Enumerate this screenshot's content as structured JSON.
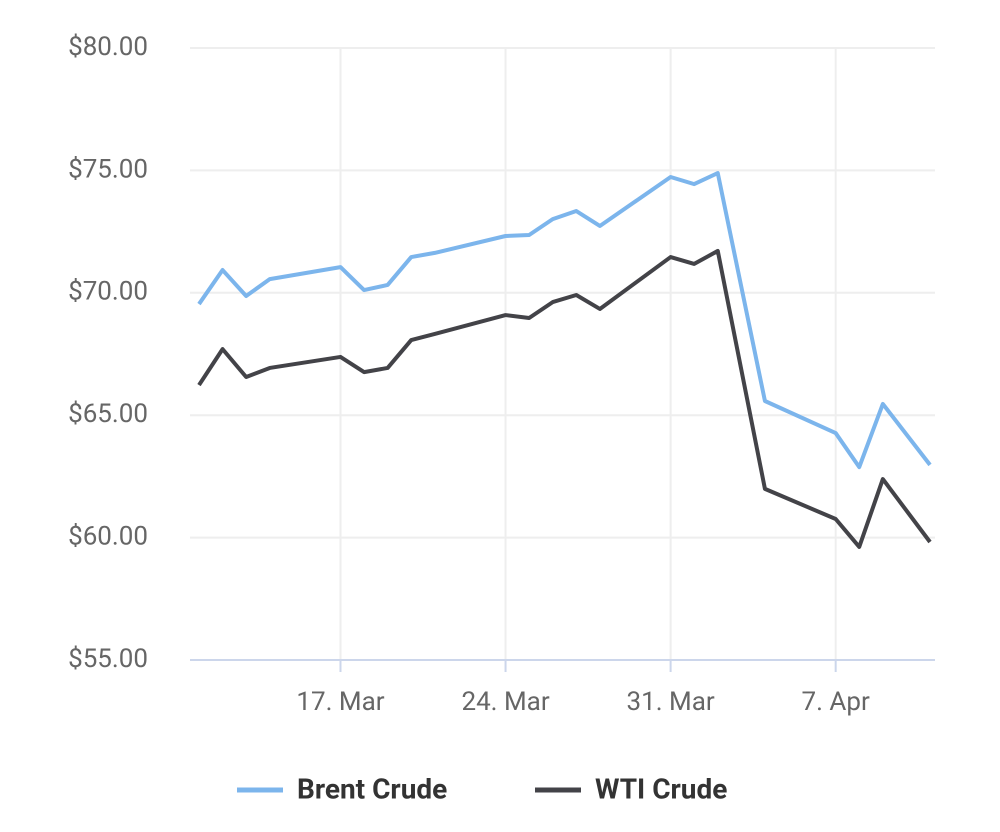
{
  "chart_data": {
    "type": "line",
    "x": [
      "11. Mar",
      "12. Mar",
      "13. Mar",
      "14. Mar",
      "17. Mar",
      "18. Mar",
      "19. Mar",
      "20. Mar",
      "21. Mar",
      "24. Mar",
      "25. Mar",
      "26. Mar",
      "27. Mar",
      "28. Mar",
      "31. Mar",
      "1. Apr",
      "2. Apr",
      "4. Apr",
      "7. Apr",
      "8. Apr",
      "9. Apr",
      "11. Apr"
    ],
    "xlim": [
      "11. Mar",
      "11. Apr"
    ],
    "xticks": [
      "17. Mar",
      "24. Mar",
      "31. Mar",
      "7. Apr"
    ],
    "ylim": [
      55,
      80
    ],
    "yticks": [
      {
        "value": 55,
        "label": "$55.00"
      },
      {
        "value": 60,
        "label": "$60.00"
      },
      {
        "value": 65,
        "label": "$65.00"
      },
      {
        "value": 70,
        "label": "$70.00"
      },
      {
        "value": 75,
        "label": "$75.00"
      },
      {
        "value": 80,
        "label": "$80.00"
      }
    ],
    "grid": true,
    "series": [
      {
        "name": "Brent Crude",
        "color": "#7cb5ec",
        "values": [
          69.54,
          70.93,
          69.87,
          70.56,
          71.05,
          70.11,
          70.32,
          71.46,
          71.63,
          72.32,
          72.36,
          73.01,
          73.34,
          72.73,
          74.73,
          74.44,
          74.89,
          65.58,
          64.27,
          62.88,
          65.46,
          62.97
        ]
      },
      {
        "name": "WTI Crude",
        "color": "#434348",
        "values": [
          66.23,
          67.7,
          66.56,
          66.93,
          67.38,
          66.76,
          66.93,
          68.07,
          68.32,
          69.09,
          68.97,
          69.62,
          69.91,
          69.34,
          71.46,
          71.18,
          71.71,
          61.99,
          60.76,
          59.62,
          62.39,
          59.82
        ]
      }
    ]
  }
}
